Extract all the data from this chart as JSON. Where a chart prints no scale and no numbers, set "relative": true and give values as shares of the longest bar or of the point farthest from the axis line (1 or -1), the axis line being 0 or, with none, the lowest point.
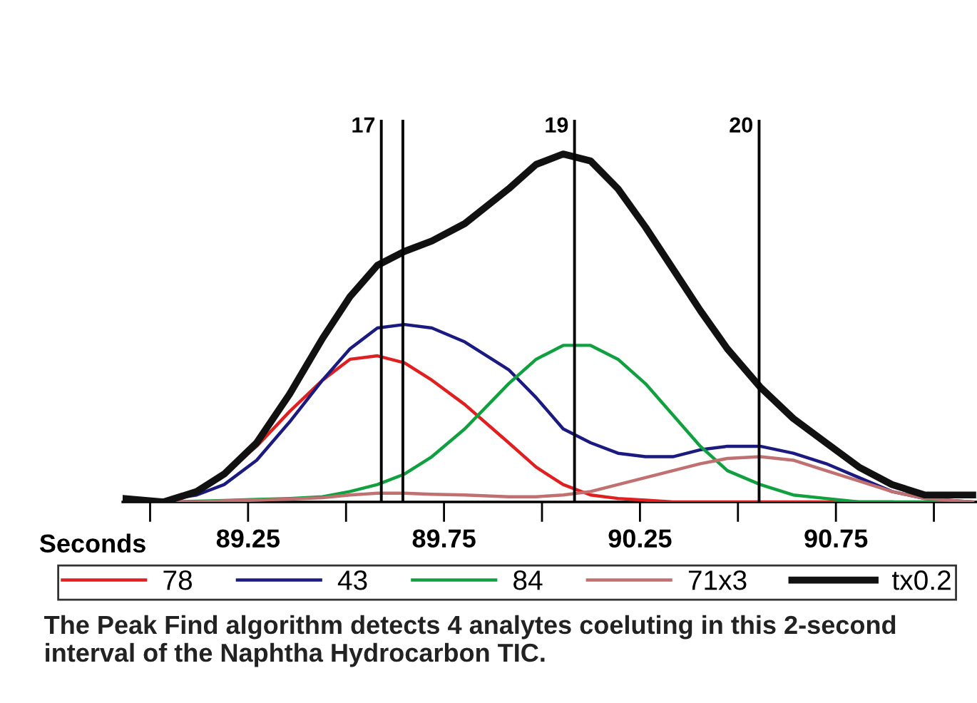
{
  "chart_data": {
    "type": "line",
    "relative": true,
    "xlabel": "Seconds",
    "x": [
      88.93,
      89.035,
      89.119,
      89.189,
      89.272,
      89.356,
      89.44,
      89.51,
      89.58,
      89.649,
      89.719,
      89.803,
      89.915,
      89.985,
      90.054,
      90.124,
      90.194,
      90.264,
      90.334,
      90.404,
      90.473,
      90.557,
      90.641,
      90.725,
      90.809,
      90.893,
      90.976,
      91.099
    ],
    "series": [
      {
        "name": "78",
        "color": "#e02020",
        "values": [
          null,
          null,
          null,
          0.08,
          0.16,
          0.26,
          0.35,
          0.41,
          0.42,
          0.4,
          0.35,
          0.28,
          0.17,
          0.1,
          0.05,
          0.02,
          0.01,
          0.005,
          0,
          0,
          0,
          0,
          0,
          0,
          0,
          0,
          null,
          null
        ]
      },
      {
        "name": "43",
        "color": "#1a1a80",
        "values": [
          0,
          0.005,
          0.02,
          0.05,
          0.12,
          0.23,
          0.35,
          0.44,
          0.5,
          0.51,
          0.5,
          0.46,
          0.38,
          0.3,
          0.21,
          0.17,
          0.14,
          0.13,
          0.13,
          0.15,
          0.16,
          0.16,
          0.14,
          0.11,
          0.07,
          0.03,
          0.01,
          0
        ]
      },
      {
        "name": "84",
        "color": "#10a040",
        "values": [
          0,
          0,
          0.002,
          0.004,
          0.007,
          0.01,
          0.015,
          0.03,
          0.05,
          0.08,
          0.13,
          0.21,
          0.34,
          0.41,
          0.45,
          0.45,
          0.41,
          0.34,
          0.25,
          0.16,
          0.09,
          0.05,
          0.02,
          0.01,
          0,
          0,
          0,
          0
        ]
      },
      {
        "name": "71x3",
        "color": "#c07070",
        "values": [
          0,
          0,
          0,
          0.003,
          0.005,
          0.008,
          0.012,
          0.02,
          0.025,
          0.025,
          0.022,
          0.02,
          0.015,
          0.015,
          0.02,
          0.03,
          0.05,
          0.07,
          0.09,
          0.11,
          0.125,
          0.13,
          0.12,
          0.09,
          0.06,
          0.03,
          0.01,
          0
        ]
      },
      {
        "name": "tx0.2",
        "color": "#111111",
        "values": [
          0.01,
          0,
          0.03,
          0.08,
          0.17,
          0.31,
          0.47,
          0.59,
          0.68,
          0.72,
          0.75,
          0.8,
          0.9,
          0.97,
          1.0,
          0.98,
          0.9,
          0.79,
          0.67,
          0.55,
          0.44,
          0.33,
          0.24,
          0.17,
          0.1,
          0.05,
          0.02,
          0.02
        ]
      }
    ],
    "xlim": [
      88.93,
      91.11
    ],
    "xticks": [
      {
        "value": 89.0,
        "label": null
      },
      89.25,
      {
        "value": 89.5,
        "label": null
      },
      89.75,
      {
        "value": 90.0,
        "label": null
      },
      90.25,
      {
        "value": 90.5,
        "label": null
      },
      90.75,
      {
        "value": 91.0,
        "label": null
      }
    ],
    "ref_lines": [
      {
        "axis": "x",
        "value": 89.59,
        "color": "#000000"
      },
      {
        "axis": "x",
        "value": 89.645,
        "color": "#000000"
      },
      {
        "axis": "x",
        "value": 90.083,
        "color": "#000000"
      },
      {
        "axis": "x",
        "value": 90.554,
        "color": "#000000"
      }
    ],
    "legend": "bottom",
    "grid": false,
    "annotations": [
      {
        "text": "17",
        "x": 89.59
      },
      {
        "text": "19",
        "x": 90.083
      },
      {
        "text": "20",
        "x": 90.554
      },
      "The Peak Find algorithm detects 4 analytes coeluting in this 2-second interval of the Naphtha Hydrocarbon TIC."
    ]
  }
}
